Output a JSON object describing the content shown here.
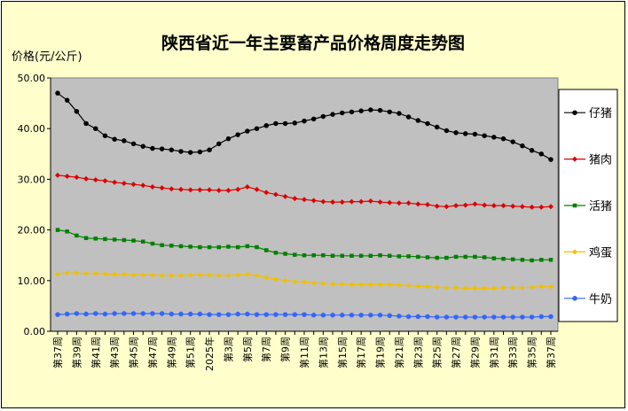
{
  "chart_data": {
    "type": "line",
    "title": "陕西省近一年主要畜产品价格周度走势图",
    "ylabel": "价格(元/公斤)",
    "xlabel": "",
    "ylim": [
      0,
      50
    ],
    "y_ticks": [
      "0.00",
      "10.00",
      "20.00",
      "30.00",
      "40.00",
      "50.00"
    ],
    "grid": false,
    "legend_position": "right",
    "x": [
      "第37周",
      "第38周",
      "第39周",
      "第40周",
      "第41周",
      "第42周",
      "第43周",
      "第44周",
      "第45周",
      "第46周",
      "第47周",
      "第48周",
      "第49周",
      "第50周",
      "第51周",
      "第52周",
      "2025年",
      "第2周",
      "第3周",
      "第4周",
      "第5周",
      "第6周",
      "第7周",
      "第8周",
      "第9周",
      "第10周",
      "第11周",
      "第12周",
      "第13周",
      "第14周",
      "第15周",
      "第16周",
      "第17周",
      "第18周",
      "第19周",
      "第20周",
      "第21周",
      "第22周",
      "第23周",
      "第24周",
      "第25周",
      "第26周",
      "第27周",
      "第28周",
      "第29周",
      "第30周",
      "第31周",
      "第32周",
      "第33周",
      "第34周",
      "第35周",
      "第36周",
      "第37周"
    ],
    "x_tick_labels": [
      "第37周",
      "第39周",
      "第41周",
      "第43周",
      "第45周",
      "第47周",
      "第49周",
      "第51周",
      "2025年",
      "第3周",
      "第5周",
      "第7周",
      "第9周",
      "第11周",
      "第13周",
      "第15周",
      "第17周",
      "第19周",
      "第21周",
      "第23周",
      "第25周",
      "第27周",
      "第29周",
      "第31周",
      "第33周",
      "第35周",
      "第37周"
    ],
    "series": [
      {
        "name": "仔猪",
        "color": "#000000",
        "marker": "circle",
        "values": [
          47.0,
          45.6,
          43.4,
          41.0,
          40.0,
          38.6,
          37.9,
          37.6,
          37.0,
          36.5,
          36.1,
          36.0,
          35.8,
          35.5,
          35.3,
          35.4,
          35.8,
          37.0,
          38.0,
          38.8,
          39.5,
          40.0,
          40.6,
          41.0,
          41.0,
          41.1,
          41.5,
          41.9,
          42.4,
          42.8,
          43.1,
          43.3,
          43.5,
          43.7,
          43.6,
          43.3,
          43.0,
          42.3,
          41.6,
          41.0,
          40.3,
          39.6,
          39.2,
          39.0,
          38.9,
          38.6,
          38.3,
          38.0,
          37.4,
          36.6,
          35.7,
          35.0,
          33.9
        ]
      },
      {
        "name": "猪肉",
        "color": "#dd0000",
        "marker": "diamond",
        "values": [
          30.8,
          30.6,
          30.4,
          30.1,
          29.9,
          29.7,
          29.4,
          29.2,
          29.0,
          28.8,
          28.5,
          28.3,
          28.1,
          28.0,
          27.9,
          27.9,
          27.9,
          27.8,
          27.8,
          28.0,
          28.5,
          28.0,
          27.4,
          27.0,
          26.6,
          26.2,
          26.0,
          25.8,
          25.6,
          25.5,
          25.5,
          25.6,
          25.6,
          25.7,
          25.5,
          25.4,
          25.3,
          25.3,
          25.1,
          25.0,
          24.7,
          24.6,
          24.8,
          24.9,
          25.1,
          24.9,
          24.8,
          24.8,
          24.7,
          24.6,
          24.5,
          24.5,
          24.6
        ]
      },
      {
        "name": "活猪",
        "color": "#008000",
        "marker": "square",
        "values": [
          20.0,
          19.7,
          18.9,
          18.4,
          18.3,
          18.2,
          18.1,
          18.0,
          17.9,
          17.7,
          17.3,
          17.0,
          16.9,
          16.8,
          16.7,
          16.6,
          16.6,
          16.6,
          16.7,
          16.6,
          16.8,
          16.6,
          16.0,
          15.5,
          15.3,
          15.1,
          15.0,
          15.0,
          15.0,
          14.9,
          14.9,
          14.9,
          14.9,
          14.9,
          15.0,
          14.9,
          14.8,
          14.8,
          14.7,
          14.6,
          14.5,
          14.5,
          14.7,
          14.7,
          14.7,
          14.6,
          14.4,
          14.3,
          14.2,
          14.1,
          14.0,
          14.1,
          14.1
        ]
      },
      {
        "name": "鸡蛋",
        "color": "#f0c000",
        "marker": "diamond",
        "values": [
          11.3,
          11.5,
          11.5,
          11.4,
          11.4,
          11.3,
          11.2,
          11.2,
          11.1,
          11.1,
          11.1,
          11.0,
          11.0,
          11.0,
          11.1,
          11.1,
          11.1,
          11.0,
          11.0,
          11.1,
          11.2,
          11.0,
          10.6,
          10.3,
          10.0,
          9.8,
          9.7,
          9.5,
          9.4,
          9.3,
          9.3,
          9.2,
          9.2,
          9.2,
          9.2,
          9.2,
          9.1,
          9.0,
          8.9,
          8.8,
          8.7,
          8.6,
          8.6,
          8.5,
          8.5,
          8.5,
          8.5,
          8.6,
          8.6,
          8.6,
          8.7,
          8.8,
          8.8
        ]
      },
      {
        "name": "牛奶",
        "color": "#3366ff",
        "marker": "circle",
        "values": [
          3.3,
          3.4,
          3.5,
          3.4,
          3.5,
          3.4,
          3.5,
          3.5,
          3.5,
          3.5,
          3.5,
          3.5,
          3.4,
          3.4,
          3.4,
          3.4,
          3.3,
          3.3,
          3.3,
          3.4,
          3.4,
          3.3,
          3.3,
          3.3,
          3.3,
          3.3,
          3.3,
          3.2,
          3.2,
          3.2,
          3.2,
          3.2,
          3.2,
          3.2,
          3.2,
          3.1,
          3.0,
          2.9,
          2.9,
          2.9,
          2.8,
          2.8,
          2.8,
          2.8,
          2.8,
          2.8,
          2.8,
          2.8,
          2.8,
          2.8,
          2.8,
          2.9,
          2.9
        ]
      }
    ]
  }
}
